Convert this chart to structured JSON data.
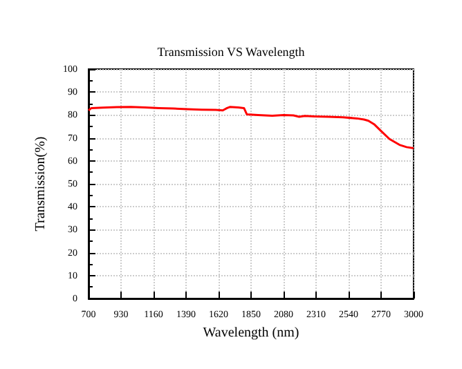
{
  "chart_data": {
    "type": "line",
    "title": "Transmission VS Wavelength",
    "xlabel": "Wavelength (nm)",
    "ylabel": "Transmission(%)",
    "x": [
      700,
      720,
      800,
      900,
      1000,
      1100,
      1200,
      1300,
      1400,
      1500,
      1600,
      1650,
      1680,
      1700,
      1760,
      1800,
      1820,
      1900,
      2000,
      2080,
      2150,
      2190,
      2230,
      2300,
      2400,
      2500,
      2600,
      2650,
      2680,
      2720,
      2770,
      2830,
      2900,
      2950,
      3000
    ],
    "series": [
      {
        "color": "#ff0000",
        "values": [
          82,
          83,
          83.2,
          83.4,
          83.5,
          83.3,
          83,
          82.8,
          82.5,
          82.3,
          82.2,
          82,
          83,
          83.5,
          83.3,
          83,
          80.3,
          80,
          79.7,
          80,
          79.8,
          79.2,
          79.6,
          79.4,
          79.2,
          79,
          78.5,
          78,
          77.5,
          76,
          73,
          69.5,
          67,
          66,
          65.5
        ]
      }
    ],
    "xlim": [
      700,
      3000
    ],
    "xticks": [
      700,
      930,
      1160,
      1390,
      1620,
      1850,
      2080,
      2310,
      2540,
      2770,
      3000
    ],
    "ylim": [
      0,
      100
    ],
    "yticks": [
      0,
      10,
      20,
      30,
      40,
      50,
      60,
      70,
      80,
      90,
      100
    ],
    "grid": true,
    "marker": "none",
    "line_style": "solid"
  }
}
